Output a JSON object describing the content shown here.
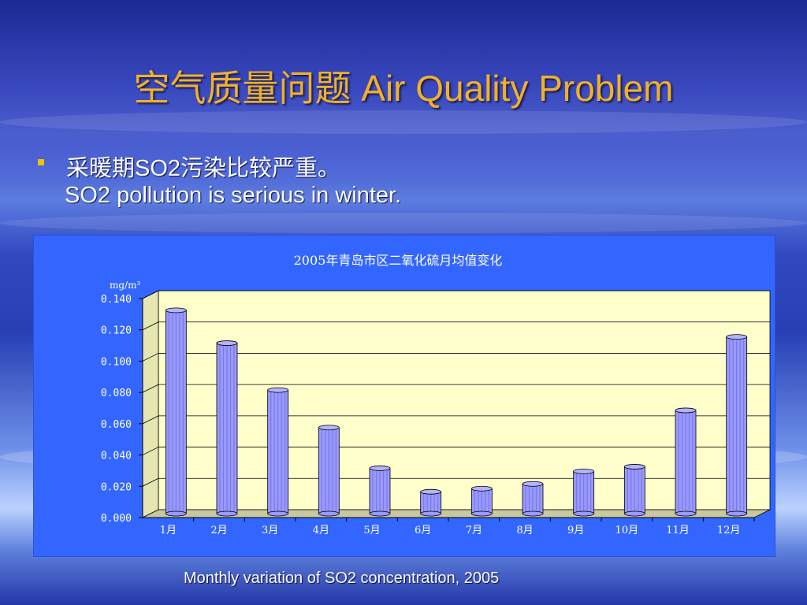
{
  "slide": {
    "title": "空气质量问题 Air Quality Problem",
    "bullet_cn": "采暖期SO2污染比较严重。",
    "bullet_en": "SO2 pollution is serious in winter.",
    "caption": "Monthly variation of SO2 concentration, 2005"
  },
  "colors": {
    "title": "#f0b128",
    "bullet_marker": "#f2c200",
    "chart_background": "#3366ff",
    "plot_wall": "#ffffcc",
    "bar_fill": "#9999ff"
  },
  "chart_data": {
    "type": "bar",
    "title": "2005年青岛市区二氧化硫月均值变化",
    "ylabel": "mg/m³",
    "xlabel": "",
    "categories": [
      "1月",
      "2月",
      "3月",
      "4月",
      "5月",
      "6月",
      "7月",
      "8月",
      "9月",
      "10月",
      "11月",
      "12月"
    ],
    "values": [
      0.13,
      0.109,
      0.079,
      0.055,
      0.029,
      0.014,
      0.016,
      0.019,
      0.027,
      0.03,
      0.066,
      0.113
    ],
    "ylim": [
      0,
      0.14
    ],
    "yticks": [
      "0.000",
      "0.020",
      "0.040",
      "0.060",
      "0.080",
      "0.100",
      "0.120",
      "0.140"
    ],
    "grid": true,
    "legend": "none"
  }
}
